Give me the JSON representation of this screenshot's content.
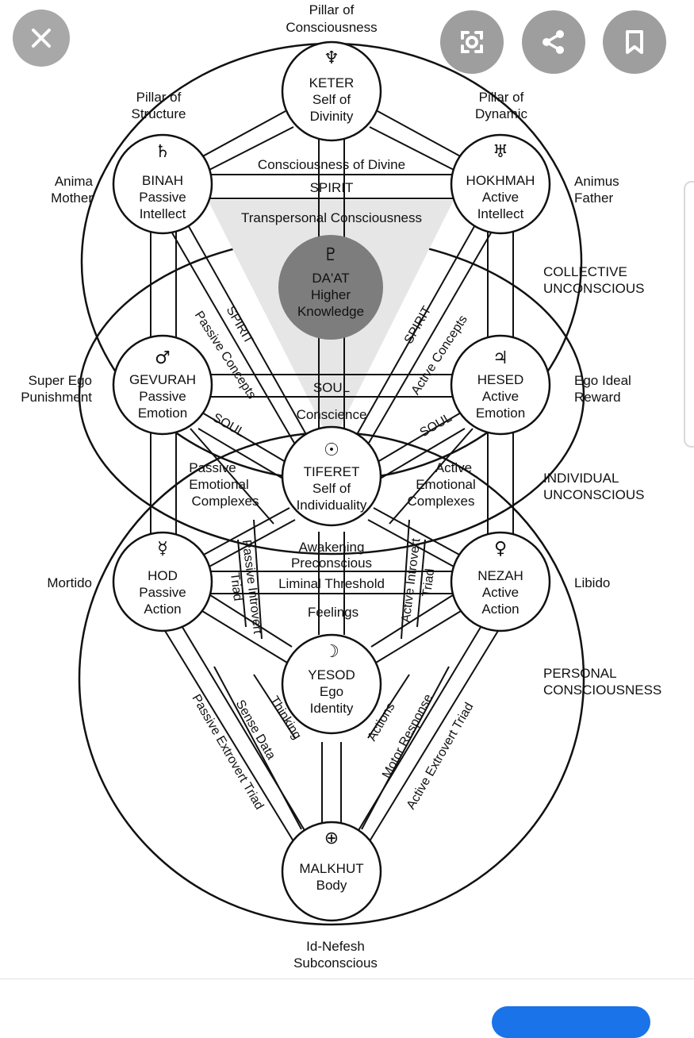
{
  "toolbar": {
    "close_icon": "close-icon",
    "lens_icon": "lens-icon",
    "share_icon": "share-icon",
    "bookmark_icon": "bookmark-icon"
  },
  "diagram": {
    "top_title": [
      "Pillar of",
      "Consciousness"
    ],
    "pillar_structure": [
      "Pillar of",
      "Structure"
    ],
    "pillar_dynamic": [
      "Pillar of",
      "Dynamic"
    ],
    "anima": [
      "Anima",
      "Mother"
    ],
    "animus": [
      "Animus",
      "Father"
    ],
    "collective": [
      "COLLECTIVE",
      "UNCONSCIOUS"
    ],
    "superego": [
      "Super Ego",
      "Punishment"
    ],
    "egoideal": [
      "Ego Ideal",
      "Reward"
    ],
    "individual": [
      "INDIVIDUAL",
      "UNCONSCIOUS"
    ],
    "mortido": "Mortido",
    "libido": "Libido",
    "personal": [
      "PERSONAL",
      "CONSCIOUSNESS"
    ],
    "bottom": [
      "Id-Nefesh",
      "Subconscious"
    ],
    "sephirot": {
      "keter": {
        "symbol": "♆",
        "lines": [
          "KETER",
          "Self of",
          "Divinity"
        ]
      },
      "binah": {
        "symbol": "♄",
        "lines": [
          "BINAH",
          "Passive",
          "Intellect"
        ]
      },
      "hokhmah": {
        "symbol": "♅",
        "lines": [
          "HOKHMAH",
          "Active",
          "Intellect"
        ]
      },
      "daat": {
        "symbol": "♇",
        "lines": [
          "DA'AT",
          "Higher",
          "Knowledge"
        ]
      },
      "gevurah": {
        "symbol": "♂",
        "lines": [
          "GEVURAH",
          "Passive",
          "Emotion"
        ]
      },
      "hesed": {
        "symbol": "♃",
        "lines": [
          "HESED",
          "Active",
          "Emotion"
        ]
      },
      "tiferet": {
        "symbol": "☉",
        "lines": [
          "TIFERET",
          "Self of",
          "Individuality"
        ]
      },
      "hod": {
        "symbol": "☿",
        "lines": [
          "HOD",
          "Passive",
          "Action"
        ]
      },
      "nezah": {
        "symbol": "♀",
        "lines": [
          "NEZAH",
          "Active",
          "Action"
        ]
      },
      "yesod": {
        "symbol": "☽",
        "lines": [
          "YESOD",
          "Ego",
          "Identity"
        ]
      },
      "malkhut": {
        "symbol": "⊕",
        "lines": [
          "MALKHUT",
          "Body"
        ]
      }
    },
    "paths": {
      "consciousness_divine": "Consciousness of Divine",
      "spirit_h": "SPIRIT",
      "transpersonal": "Transpersonal Consciousness",
      "spirit_left": "SPIRIT",
      "spirit_right": "SPIRIT",
      "passive_concepts": "Passive Concepts",
      "active_concepts": "Active Concepts",
      "soul_h": "SOUL",
      "conscience": "Conscience",
      "soul_left": "SOUL",
      "soul_right": "SOUL",
      "passive_emotional": [
        "Passive",
        "Emotional",
        "Complexes"
      ],
      "active_emotional": [
        "Active",
        "Emotional",
        "Complexes"
      ],
      "awakening": "Awakening",
      "preconscious": "Preconscious",
      "liminal": "Liminal Threshold",
      "feelings": "Feelings",
      "passive_introvert": [
        "Passive Introvert",
        "Triad"
      ],
      "active_introvert": [
        "Active Introvert",
        "Triad"
      ],
      "passive_extrovert": "Passive Extrovert Triad",
      "sense_data": "Sense Data",
      "thinking": "Thinking",
      "actions": "Actions",
      "motor_response": "Motor Response",
      "active_extrovert": "Active Extrovert Triad"
    }
  }
}
